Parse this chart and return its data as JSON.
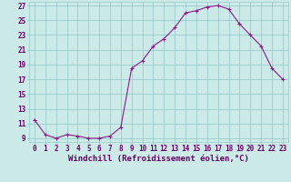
{
  "hours": [
    0,
    1,
    2,
    3,
    4,
    5,
    6,
    7,
    8,
    9,
    10,
    11,
    12,
    13,
    14,
    15,
    16,
    17,
    18,
    19,
    20,
    21,
    22,
    23
  ],
  "values": [
    11.5,
    9.5,
    9.0,
    9.5,
    9.3,
    9.0,
    9.0,
    9.3,
    10.5,
    18.5,
    19.5,
    21.5,
    22.5,
    24.0,
    26.0,
    26.3,
    26.8,
    27.0,
    26.5,
    24.5,
    23.0,
    21.5,
    18.5,
    17.0
  ],
  "line_color": "#8b1a8b",
  "marker": "+",
  "bg_color": "#cceae7",
  "grid_color": "#99cccc",
  "text_color": "#660066",
  "xlabel": "Windchill (Refroidissement éolien,°C)",
  "ylim": [
    8.5,
    27.5
  ],
  "xlim": [
    -0.5,
    23.5
  ],
  "yticks": [
    9,
    11,
    13,
    15,
    17,
    19,
    21,
    23,
    25,
    27
  ],
  "tick_fontsize": 5.5,
  "label_fontsize": 6.5
}
